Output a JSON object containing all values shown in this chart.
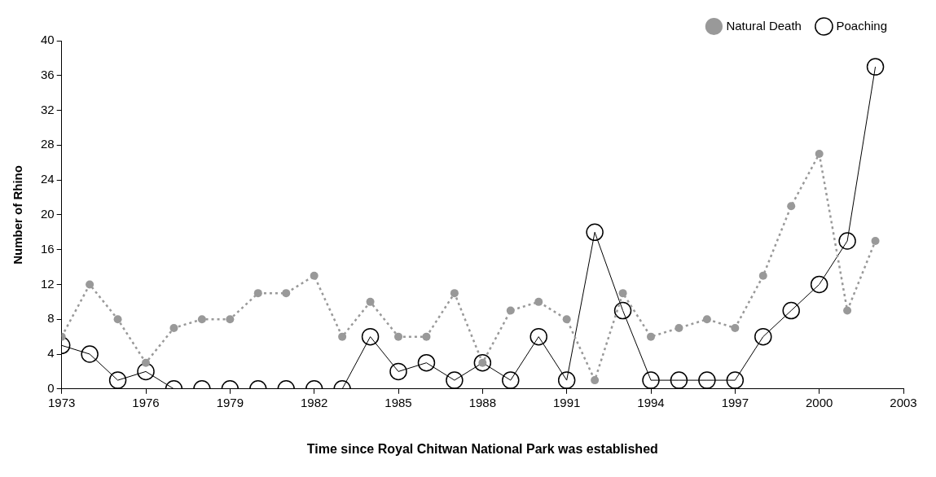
{
  "chart_data": {
    "type": "line",
    "xlabel": "Time since Royal Chitwan National Park was established",
    "ylabel": "Number of Rhino",
    "x": [
      1973,
      1974,
      1975,
      1976,
      1977,
      1978,
      1979,
      1980,
      1981,
      1982,
      1983,
      1984,
      1985,
      1986,
      1987,
      1988,
      1989,
      1990,
      1991,
      1992,
      1993,
      1994,
      1995,
      1996,
      1997,
      1998,
      1999,
      2000,
      2001,
      2002
    ],
    "series": [
      {
        "name": "Natural Death",
        "color": "#999999",
        "line_style": "dotted",
        "values": [
          6,
          12,
          8,
          3,
          7,
          8,
          8,
          11,
          11,
          13,
          6,
          10,
          6,
          6,
          11,
          3,
          9,
          10,
          8,
          1,
          11,
          6,
          7,
          8,
          7,
          13,
          21,
          27,
          9,
          17
        ]
      },
      {
        "name": "Poaching",
        "color": "#000000",
        "line_style": "solid",
        "values": [
          5,
          4,
          1,
          2,
          0,
          0,
          0,
          0,
          0,
          0,
          0,
          6,
          2,
          3,
          1,
          3,
          1,
          6,
          1,
          18,
          9,
          1,
          1,
          1,
          1,
          6,
          9,
          12,
          17,
          37
        ]
      }
    ],
    "xlim": [
      1973,
      2003
    ],
    "xticks": [
      1973,
      1976,
      1979,
      1982,
      1985,
      1988,
      1991,
      1994,
      1997,
      2000,
      2003
    ],
    "ylim": [
      0,
      40
    ],
    "yticks": [
      0,
      4,
      8,
      12,
      16,
      20,
      24,
      28,
      32,
      36,
      40
    ],
    "marker": "circle",
    "grid": false,
    "legend": "top right"
  }
}
